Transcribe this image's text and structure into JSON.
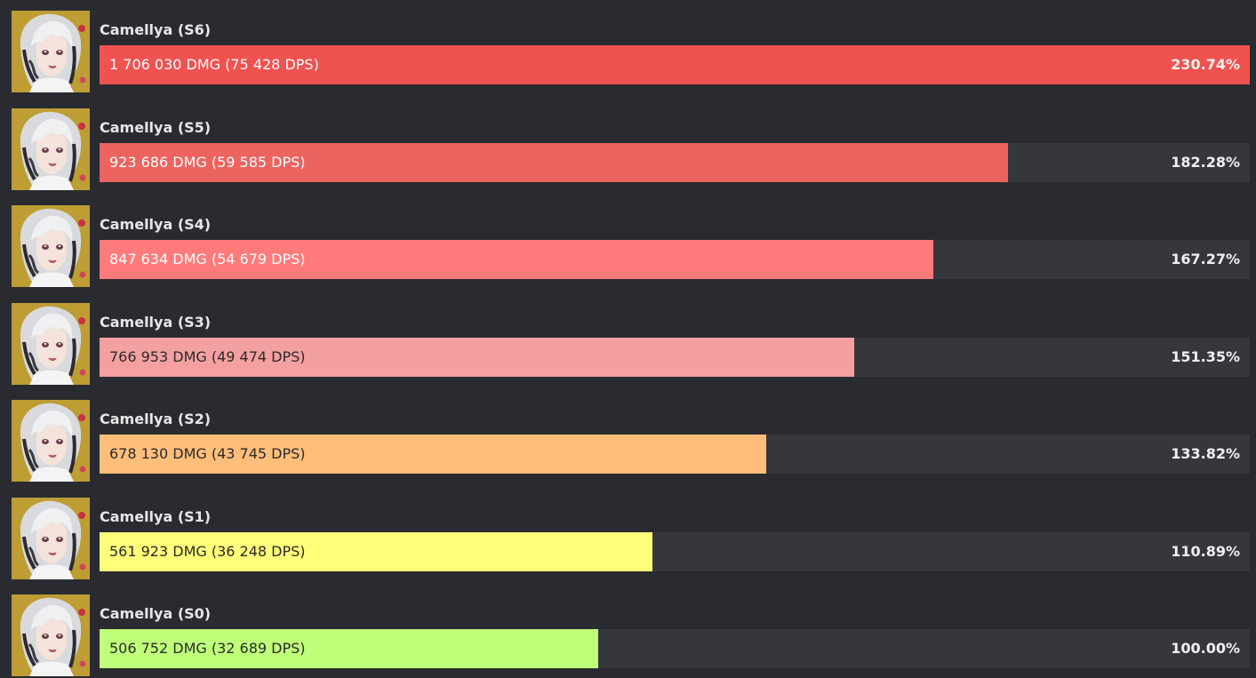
{
  "chart_data": {
    "type": "bar",
    "orientation": "horizontal",
    "categories": [
      "Camellya (S6)",
      "Camellya (S5)",
      "Camellya (S4)",
      "Camellya (S3)",
      "Camellya (S2)",
      "Camellya (S1)",
      "Camellya (S0)"
    ],
    "values": [
      230.74,
      182.28,
      167.27,
      151.35,
      133.82,
      110.89,
      100.0
    ],
    "xlim": [
      0,
      230.74
    ],
    "bars": [
      {
        "name": "Camellya (S6)",
        "damage_label": "1 706 030 DMG (75 428 DPS)",
        "percent_label": "230.74%",
        "value": 230.74,
        "color": "#f0524f",
        "text_color": "#ffffff"
      },
      {
        "name": "Camellya (S5)",
        "damage_label": "923 686 DMG (59 585 DPS)",
        "percent_label": "182.28%",
        "value": 182.28,
        "color": "#ec6460",
        "text_color": "#ffffff"
      },
      {
        "name": "Camellya (S4)",
        "damage_label": "847 634 DMG (54 679 DPS)",
        "percent_label": "167.27%",
        "value": 167.27,
        "color": "#ff7b7b",
        "text_color": "#ffffff"
      },
      {
        "name": "Camellya (S3)",
        "damage_label": "766 953 DMG (49 474 DPS)",
        "percent_label": "151.35%",
        "value": 151.35,
        "color": "#f5a0a0",
        "text_color": "#2a2a2a"
      },
      {
        "name": "Camellya (S2)",
        "damage_label": "678 130 DMG (43 745 DPS)",
        "percent_label": "133.82%",
        "value": 133.82,
        "color": "#ffbf7a",
        "text_color": "#2a2a2a"
      },
      {
        "name": "Camellya (S1)",
        "damage_label": "561 923 DMG (36 248 DPS)",
        "percent_label": "110.89%",
        "value": 110.89,
        "color": "#ffff7a",
        "text_color": "#2a2a2a"
      },
      {
        "name": "Camellya (S0)",
        "damage_label": "506 752 DMG (32 689 DPS)",
        "percent_label": "100.00%",
        "value": 100.0,
        "color": "#bfff7a",
        "text_color": "#2a2a2a"
      }
    ],
    "colors": {
      "background": "#2a2b30",
      "track": "#36373d",
      "avatar_background": "#c9a93a"
    },
    "avatar_icon": "character-portrait-icon",
    "grid": false,
    "legend": "none"
  }
}
